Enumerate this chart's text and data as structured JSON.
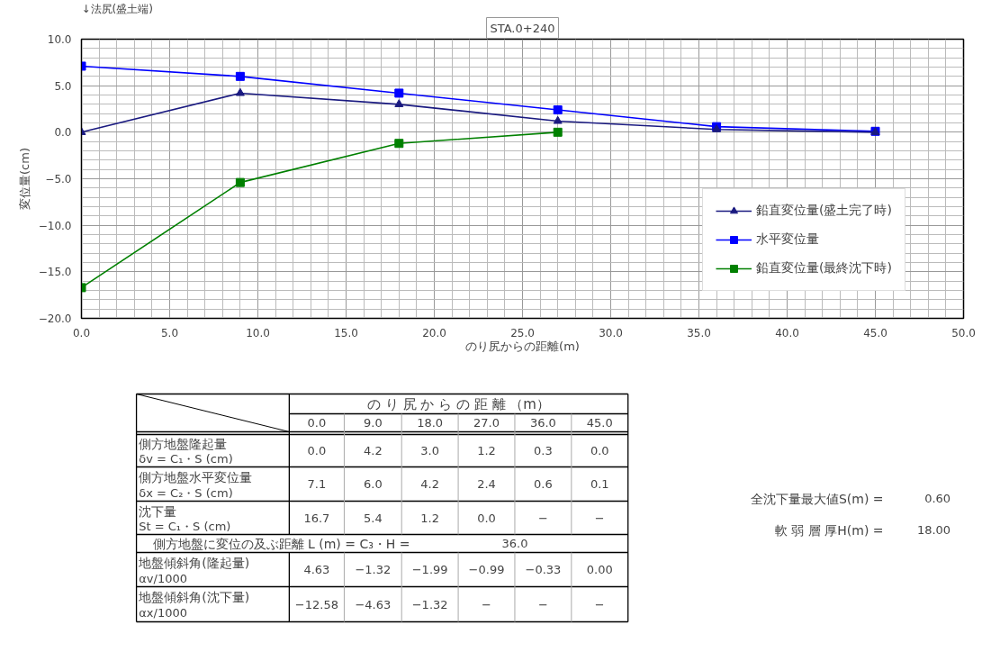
{
  "chart_data": {
    "type": "line",
    "title": "STA.0+240",
    "xlabel": "のり尻からの距離(m)",
    "ylabel": "変位量(cm)",
    "x": [
      0,
      9,
      18,
      27,
      36,
      45
    ],
    "series": [
      {
        "name": "鉛直変位量(盛土完了時)",
        "color": "#1a1a80",
        "marker": "triangle",
        "values": [
          0.0,
          4.2,
          3.0,
          1.2,
          0.3,
          0.0
        ]
      },
      {
        "name": "水平変位量",
        "color": "#0000ff",
        "marker": "square",
        "values": [
          7.1,
          6.0,
          4.2,
          2.4,
          0.6,
          0.1
        ]
      },
      {
        "name": "鉛直変位量(最終沈下時)",
        "color": "#008000",
        "marker": "square",
        "values": [
          -16.7,
          -5.4,
          -1.2,
          0.0,
          null,
          null
        ]
      }
    ],
    "xlim": [
      0,
      50
    ],
    "xticks": [
      {
        "value": 0,
        "label": "0.0"
      },
      {
        "value": 5,
        "label": "5.0"
      },
      {
        "value": 10,
        "label": "10.0"
      },
      {
        "value": 15,
        "label": "15.0"
      },
      {
        "value": 20,
        "label": "20.0"
      },
      {
        "value": 25,
        "label": "25.0"
      },
      {
        "value": 30,
        "label": "30.0"
      },
      {
        "value": 35,
        "label": "35.0"
      },
      {
        "value": 40,
        "label": "40.0"
      },
      {
        "value": 45,
        "label": "45.0"
      },
      {
        "value": 50,
        "label": "50.0"
      }
    ],
    "ylim": [
      -20,
      10
    ],
    "yticks": [
      {
        "value": -20,
        "label": "−20.0"
      },
      {
        "value": -15,
        "label": "−15.0"
      },
      {
        "value": -10,
        "label": "−10.0"
      },
      {
        "value": -5,
        "label": "−5.0"
      },
      {
        "value": 0,
        "label": "0.0"
      },
      {
        "value": 5,
        "label": "5.0"
      },
      {
        "value": 10,
        "label": "10.0"
      }
    ],
    "grid": true,
    "legend": "right",
    "line_style": "solid",
    "annotations": [
      "↓法尻(盛土端)",
      "の り 尻 か ら の 距 離 （m）",
      "0.0",
      "9.0",
      "18.0",
      "27.0",
      "36.0",
      "45.0",
      "側方地盤隆起量",
      "δv = C₁・S (cm)",
      "0.0",
      "4.2",
      "3.0",
      "1.2",
      "0.3",
      "0.0",
      "側方地盤水平変位量",
      "δx = C₂・S (cm)",
      "7.1",
      "6.0",
      "4.2",
      "2.4",
      "0.6",
      "0.1",
      "沈下量",
      "St = C₁・S (cm)",
      "16.7",
      "5.4",
      "1.2",
      "0.0",
      "−",
      "−",
      "側方地盤に変位の及ぶ距離 L (m) = C₃・H =",
      "36.0",
      "地盤傾斜角(隆起量)",
      "αv/1000",
      "4.63",
      "−1.32",
      "−1.99",
      "−0.99",
      "−0.33",
      "0.00",
      "地盤傾斜角(沈下量)",
      "αx/1000",
      "−12.58",
      "−4.63",
      "−1.32",
      "−",
      "−",
      "−",
      "全沈下量最大値S(m) =",
      "0.60",
      "軟 弱 層 厚H(m) =",
      "18.00"
    ]
  }
}
